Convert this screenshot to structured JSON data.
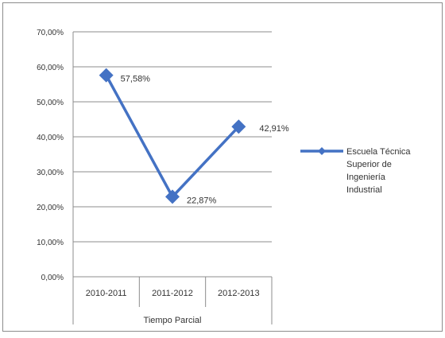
{
  "chart_data": {
    "type": "line",
    "categories": [
      "2010-2011",
      "2011-2012",
      "2012-2013"
    ],
    "series": [
      {
        "name": "Escuela Técnica Superior de Ingeniería Industrial",
        "values": [
          57.58,
          22.87,
          42.91
        ],
        "data_labels": [
          "57,58%",
          "22,87%",
          "42,91%"
        ],
        "color": "#4472C4"
      }
    ],
    "y_ticks": [
      "0,00%",
      "10,00%",
      "20,00%",
      "30,00%",
      "40,00%",
      "50,00%",
      "60,00%",
      "70,00%"
    ],
    "ylim": [
      0,
      70
    ],
    "xlabel": "Tiempo Parcial",
    "ylabel": "",
    "title": "",
    "legend": {
      "placement": "right",
      "lines": [
        "Escuela Técnica",
        "Superior de",
        "Ingeniería",
        "Industrial"
      ]
    },
    "grid": true
  }
}
